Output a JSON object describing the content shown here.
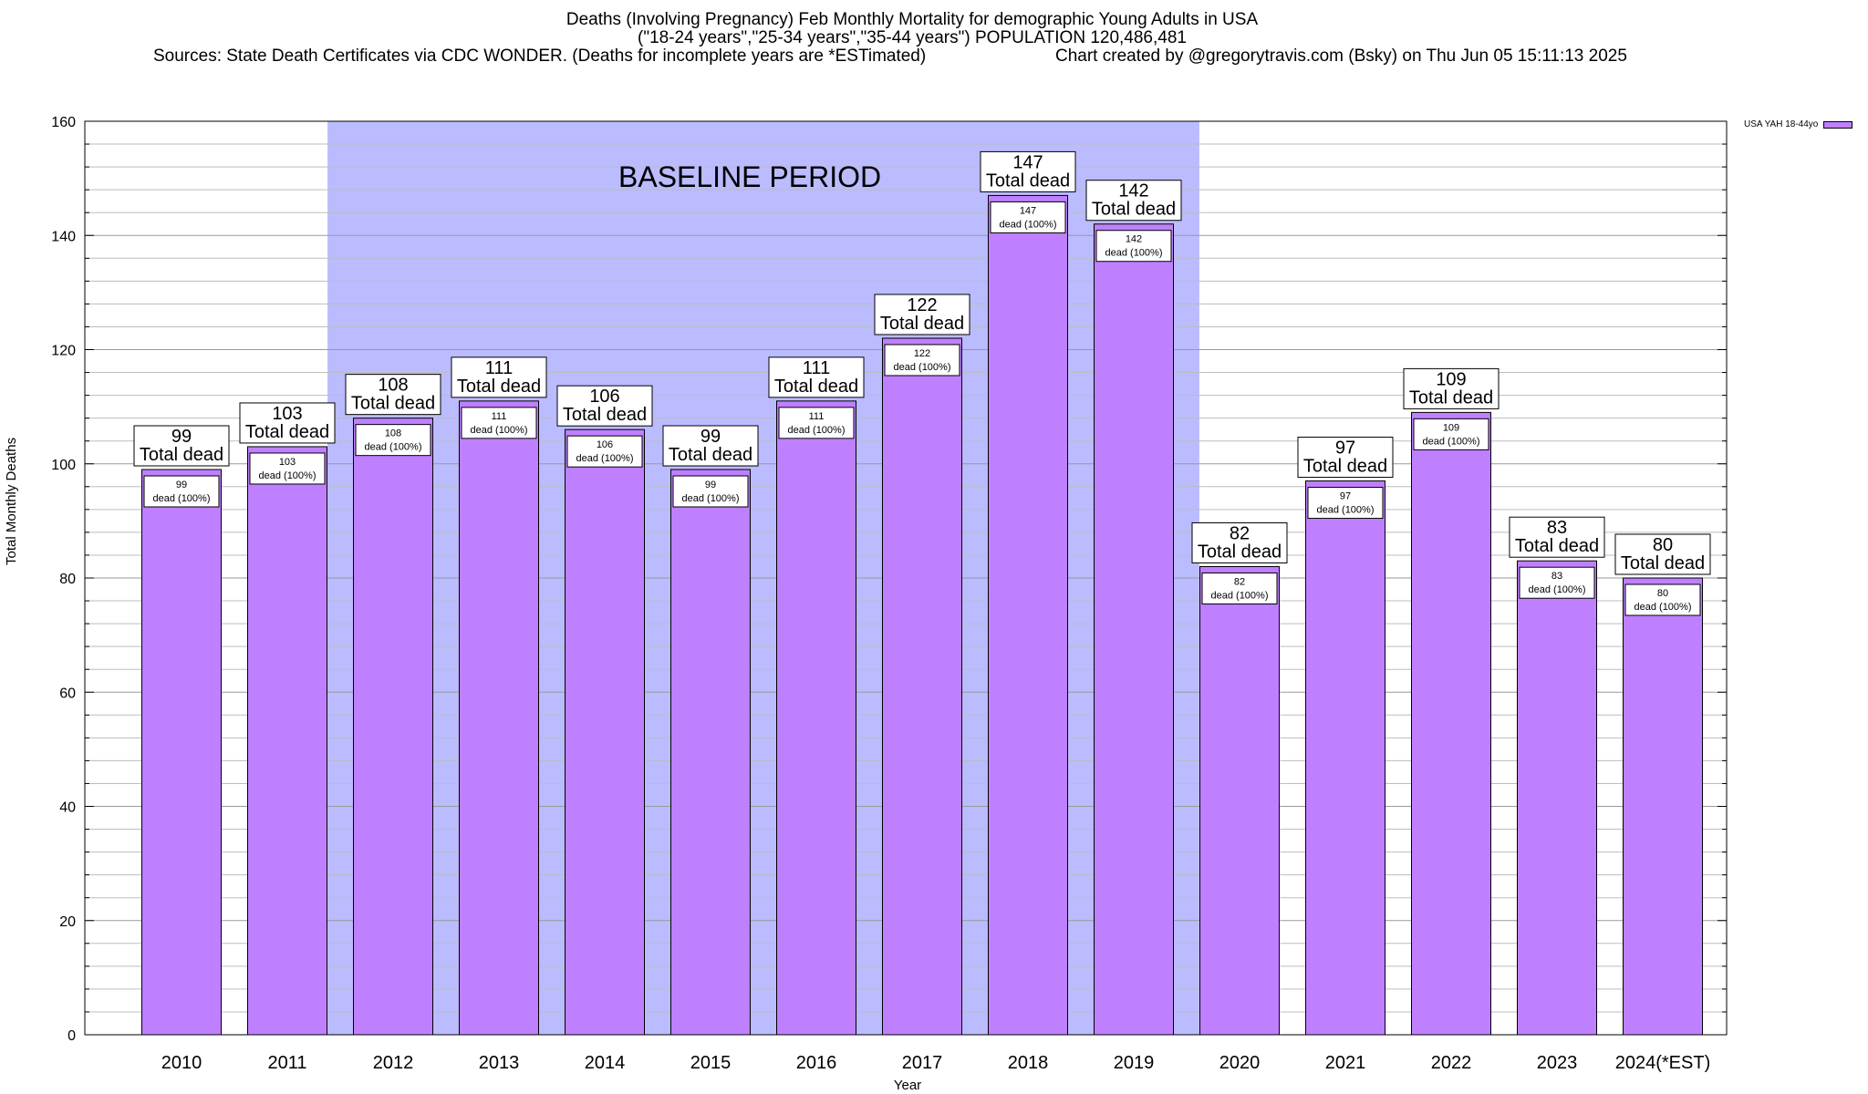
{
  "title": {
    "line1": "Deaths (Involving Pregnancy) Feb Monthly Mortality for demographic Young Adults in USA",
    "line2": "(\"18-24 years\",\"25-34 years\",\"35-44 years\") POPULATION 120,486,481",
    "line3_left": "Sources: State Death Certificates via CDC WONDER. (Deaths for incomplete years are *ESTimated)",
    "line3_right": "Chart created by @gregorytravis.com (Bsky) on Thu Jun 05 15:11:13 2025"
  },
  "annotation": "BASELINE PERIOD",
  "legend": {
    "label": "USA YAH 18-44yo",
    "color": "#bf80ff"
  },
  "chart_data": {
    "type": "bar",
    "categories": [
      "2010",
      "2011",
      "2012",
      "2013",
      "2014",
      "2015",
      "2016",
      "2017",
      "2018",
      "2019",
      "2020",
      "2021",
      "2022",
      "2023",
      "2024(*EST)"
    ],
    "series": [
      {
        "name": "USA YAH 18-44yo",
        "values": [
          99,
          103,
          108,
          111,
          106,
          99,
          111,
          122,
          147,
          142,
          82,
          97,
          109,
          83,
          80
        ]
      }
    ],
    "xlabel": "Year",
    "ylabel": "Total Monthly Deaths",
    "ylim": [
      0,
      160
    ],
    "yticks": [
      0,
      20,
      40,
      60,
      80,
      100,
      120,
      140,
      160
    ],
    "grid": true,
    "baseline_period": {
      "from": "2012",
      "to": "2019",
      "color": "#bbbbff"
    },
    "bar_label_total_suffix": "Total dead",
    "bar_label_inner_suffix": "dead (100%)",
    "bar_color": "#bf80ff"
  }
}
